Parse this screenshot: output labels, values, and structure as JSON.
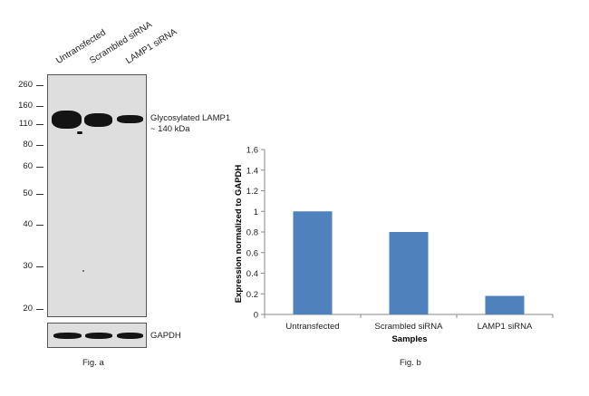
{
  "blot": {
    "lanes": [
      "Untransfected",
      "Scrambled siRNA",
      "LAMP1 siRNA"
    ],
    "mw_markers": [
      "260",
      "160",
      "110",
      "80",
      "60",
      "50",
      "40",
      "30",
      "20"
    ],
    "band_label_line1": "Glycosylated LAMP1",
    "band_label_line2": "~ 140 kDa",
    "loading_label": "GAPDH",
    "caption": "Fig. a"
  },
  "chart_data": {
    "type": "bar",
    "categories": [
      "Untransfected",
      "Scrambled siRNA",
      "LAMP1 siRNA"
    ],
    "values": [
      1.0,
      0.8,
      0.18
    ],
    "xlabel": "Samples",
    "ylabel": "Expression normalized to GAPDH",
    "ylim": [
      0,
      1.6
    ],
    "yticks": [
      "0",
      "0.2",
      "0.4",
      "0.6",
      "0.8",
      "1",
      "1.2",
      "1.4",
      "1.6"
    ],
    "bar_color": "#4f81bd",
    "grid": false,
    "legend": "none",
    "caption": "Fig. b"
  }
}
